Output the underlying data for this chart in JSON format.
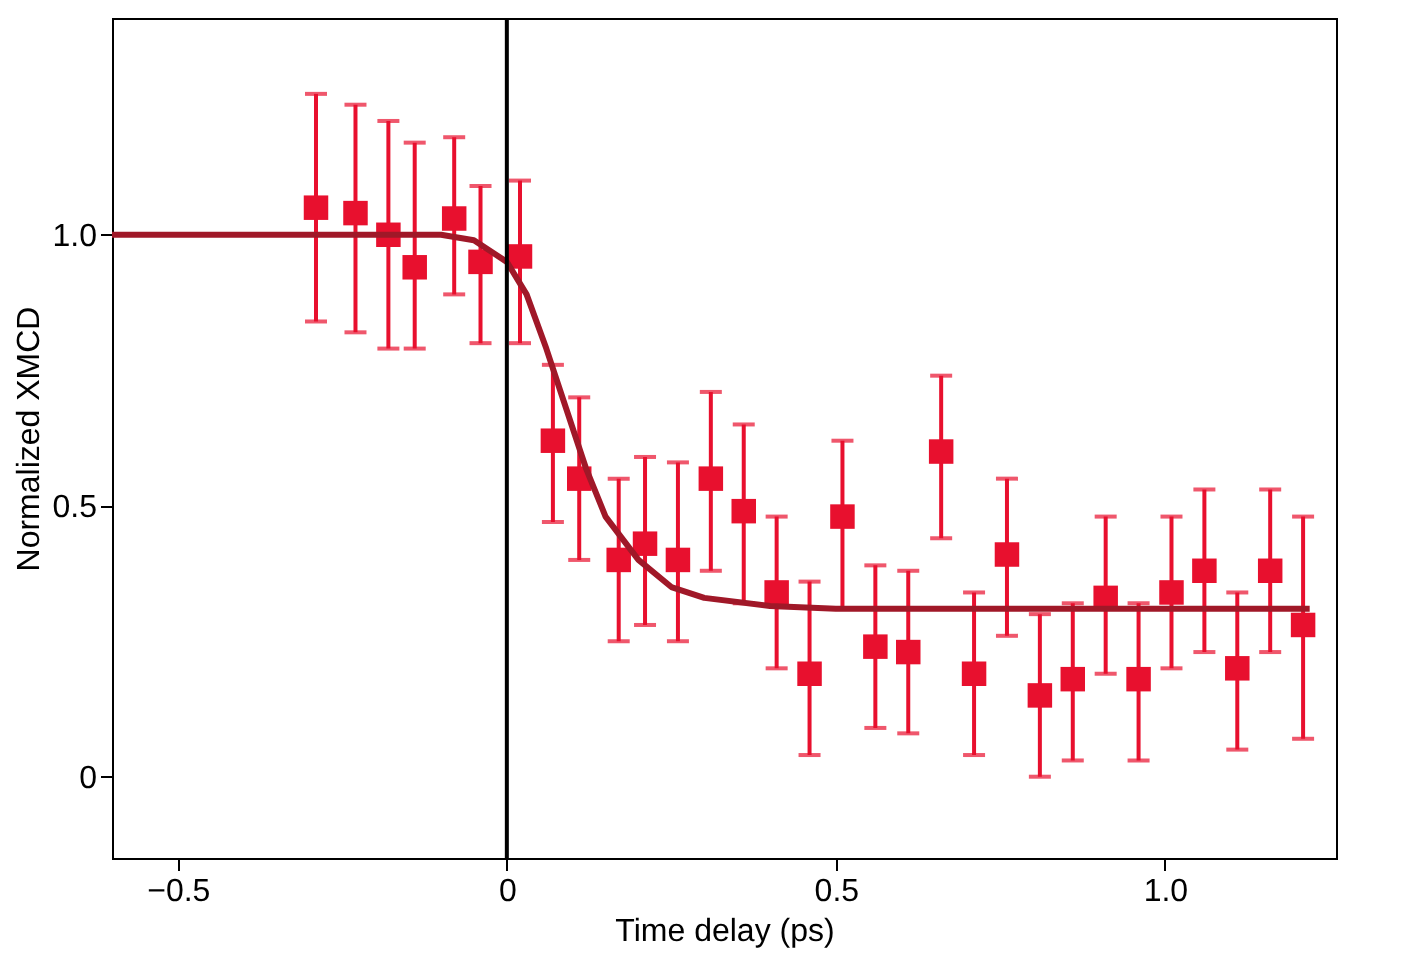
{
  "chart_data": {
    "type": "scatter",
    "xlabel": "Time delay (ps)",
    "ylabel": "Normalized XMCD",
    "grid": false,
    "xlim": [
      -0.6,
      1.26
    ],
    "ylim": [
      -0.15,
      1.4
    ],
    "xticks": [
      {
        "value": -0.5,
        "label": "−0.5"
      },
      0,
      0.5,
      {
        "value": 1.0,
        "label": "1.0"
      }
    ],
    "yticks": [
      0,
      0.5,
      {
        "value": 1.0,
        "label": "1.0"
      }
    ],
    "ref_lines": [
      {
        "axis": "x",
        "value": 0,
        "color": "#000000"
      }
    ],
    "series": [
      {
        "marker": "square",
        "color": "#e8102e",
        "x": [
          -0.29,
          -0.23,
          -0.18,
          -0.14,
          -0.08,
          -0.04,
          0.02,
          0.07,
          0.11,
          0.17,
          0.21,
          0.26,
          0.31,
          0.36,
          0.41,
          0.46,
          0.51,
          0.56,
          0.61,
          0.66,
          0.71,
          0.76,
          0.81,
          0.86,
          0.91,
          0.96,
          1.01,
          1.06,
          1.11,
          1.16,
          1.21
        ],
        "values": [
          1.05,
          1.04,
          1.0,
          0.94,
          1.03,
          0.95,
          0.96,
          0.62,
          0.55,
          0.4,
          0.43,
          0.4,
          0.55,
          0.49,
          0.34,
          0.19,
          0.48,
          0.24,
          0.23,
          0.6,
          0.19,
          0.41,
          0.15,
          0.18,
          0.33,
          0.18,
          0.34,
          0.38,
          0.2,
          0.38,
          0.28
        ],
        "errors": [
          [
            0.84,
            1.26
          ],
          [
            0.82,
            1.24
          ],
          [
            0.79,
            1.21
          ],
          [
            0.79,
            1.17
          ],
          [
            0.89,
            1.18
          ],
          [
            0.8,
            1.09
          ],
          [
            0.8,
            1.1
          ],
          [
            0.47,
            0.76
          ],
          [
            0.4,
            0.7
          ],
          [
            0.25,
            0.55
          ],
          [
            0.28,
            0.59
          ],
          [
            0.25,
            0.58
          ],
          [
            0.38,
            0.71
          ],
          [
            0.32,
            0.65
          ],
          [
            0.2,
            0.48
          ],
          [
            0.04,
            0.36
          ],
          [
            0.31,
            0.62
          ],
          [
            0.09,
            0.39
          ],
          [
            0.08,
            0.38
          ],
          [
            0.44,
            0.74
          ],
          [
            0.04,
            0.34
          ],
          [
            0.26,
            0.55
          ],
          [
            0.0,
            0.3
          ],
          [
            0.03,
            0.32
          ],
          [
            0.19,
            0.48
          ],
          [
            0.03,
            0.32
          ],
          [
            0.2,
            0.48
          ],
          [
            0.23,
            0.53
          ],
          [
            0.05,
            0.34
          ],
          [
            0.23,
            0.53
          ],
          [
            0.07,
            0.48
          ]
        ]
      },
      {
        "type": "line",
        "color": "#a01828",
        "x": [
          -0.6,
          -0.1,
          -0.05,
          0,
          0.03,
          0.06,
          0.09,
          0.12,
          0.15,
          0.2,
          0.25,
          0.3,
          0.4,
          0.5,
          1.22
        ],
        "values": [
          1.0,
          1.0,
          0.99,
          0.95,
          0.89,
          0.79,
          0.68,
          0.57,
          0.48,
          0.4,
          0.35,
          0.33,
          0.315,
          0.31,
          0.31
        ]
      }
    ]
  }
}
